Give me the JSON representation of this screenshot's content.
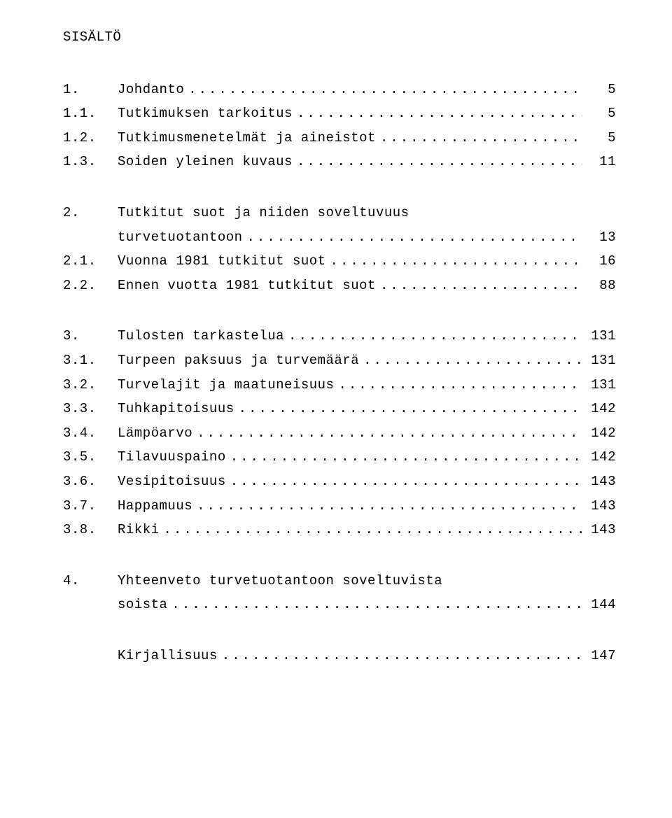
{
  "title": "SISÄLTÖ",
  "blocks": [
    [
      {
        "num": "1.",
        "label": "Johdanto",
        "page": "5"
      },
      {
        "num": "1.1.",
        "label": "Tutkimuksen tarkoitus",
        "page": "5"
      },
      {
        "num": "1.2.",
        "label": "Tutkimusmenetelmät ja aineistot",
        "page": "5"
      },
      {
        "num": "1.3.",
        "label": "Soiden yleinen kuvaus",
        "page": "11"
      }
    ],
    [
      {
        "num": "2.",
        "label": "Tutkitut suot ja niiden soveltuvuus",
        "cont": "turvetuotantoon",
        "page": "13"
      },
      {
        "num": "2.1.",
        "label": "Vuonna 1981 tutkitut suot",
        "page": "16"
      },
      {
        "num": "2.2.",
        "label": "Ennen vuotta 1981 tutkitut suot",
        "page": "88"
      }
    ],
    [
      {
        "num": "3.",
        "label": "Tulosten tarkastelua",
        "page": "131"
      },
      {
        "num": "3.1.",
        "label": "Turpeen paksuus ja turvemäärä",
        "page": "131"
      },
      {
        "num": "3.2.",
        "label": "Turvelajit ja maatuneisuus",
        "page": "131"
      },
      {
        "num": "3.3.",
        "label": "Tuhkapitoisuus",
        "page": "142"
      },
      {
        "num": "3.4.",
        "label": "Lämpöarvo",
        "page": "142"
      },
      {
        "num": "3.5.",
        "label": "Tilavuuspaino",
        "page": "142"
      },
      {
        "num": "3.6.",
        "label": "Vesipitoisuus",
        "page": "143"
      },
      {
        "num": "3.7.",
        "label": "Happamuus",
        "page": "143"
      },
      {
        "num": "3.8.",
        "label": "Rikki",
        "page": "143"
      }
    ],
    [
      {
        "num": "4.",
        "label": "Yhteenveto turvetuotantoon soveltuvista",
        "cont": "soista",
        "page": "144"
      }
    ],
    [
      {
        "num": "",
        "label": "Kirjallisuus",
        "page": "147"
      }
    ]
  ]
}
